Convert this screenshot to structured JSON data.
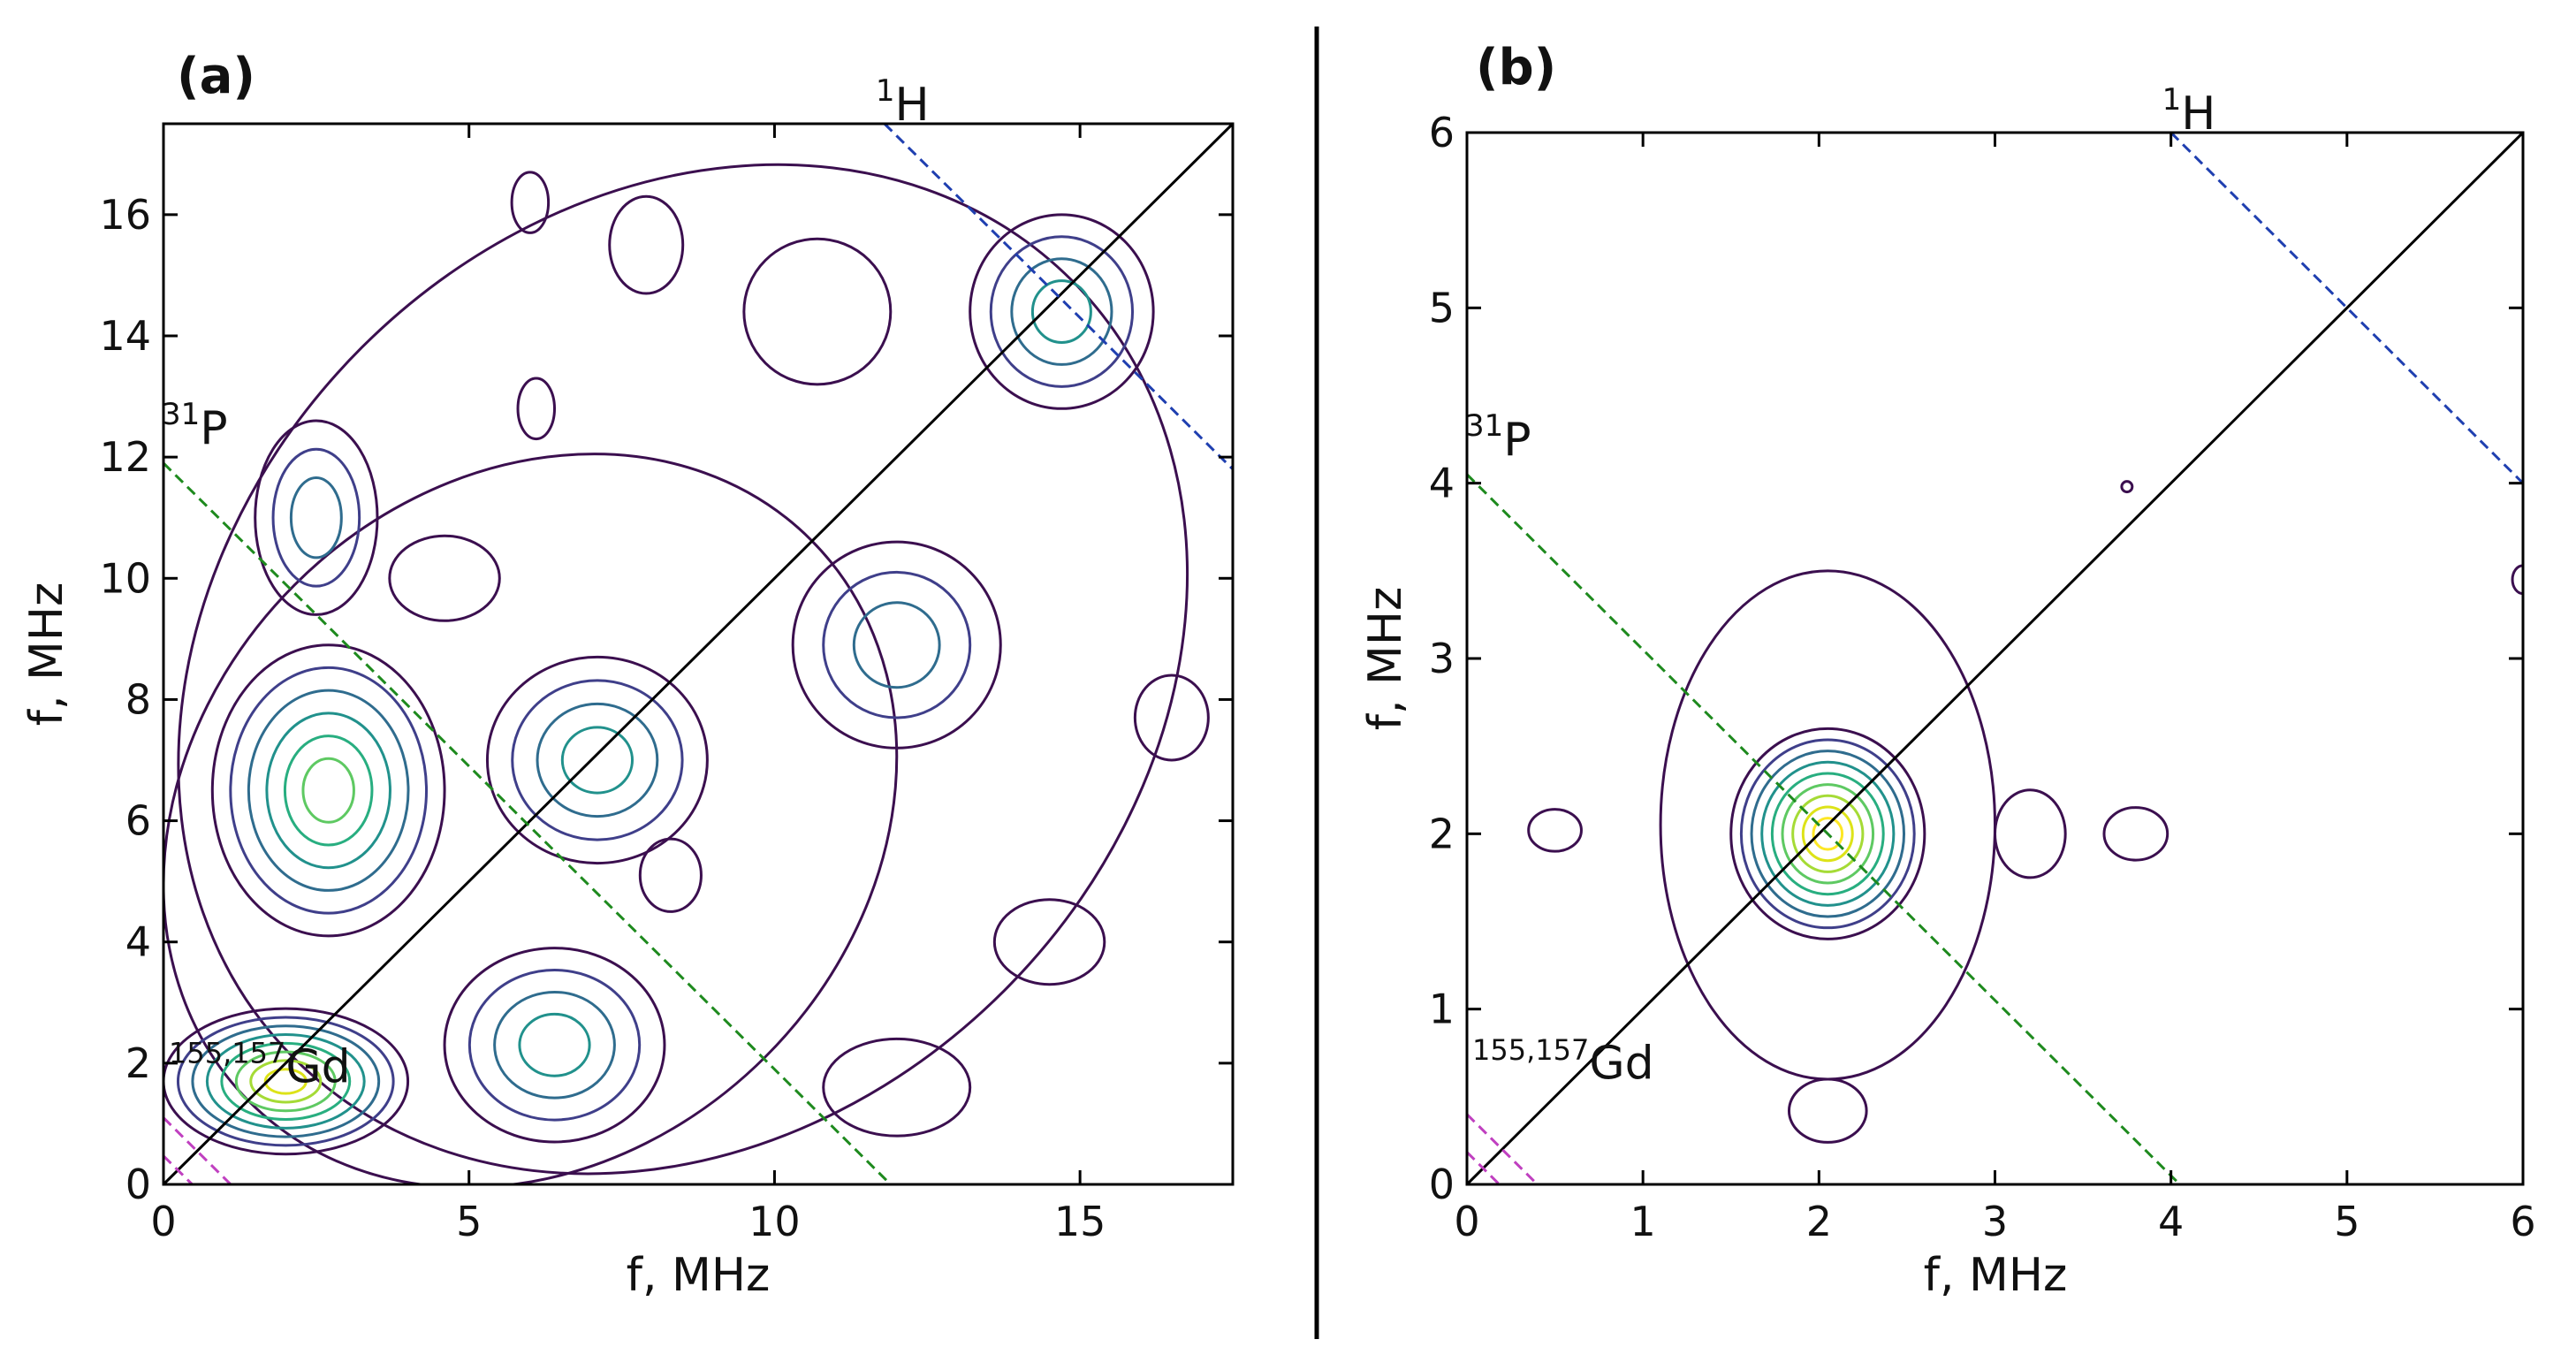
{
  "chart_data": [
    {
      "type": "contour",
      "panel_label": "(a)",
      "xlabel": "f, MHz",
      "ylabel": "f, MHz",
      "xlim": [
        0,
        17.5
      ],
      "ylim": [
        0,
        17.5
      ],
      "xticks": [
        0,
        5,
        10,
        15
      ],
      "yticks": [
        0,
        2,
        4,
        6,
        8,
        10,
        12,
        14,
        16
      ],
      "diagonal": {
        "from": [
          0,
          0
        ],
        "to": [
          17.5,
          17.5
        ],
        "color": "#000000"
      },
      "antidiagonals": [
        {
          "name": "1H",
          "label_base": "H",
          "label_sup": "1",
          "color": "#1f3fb0",
          "from": [
            11.8,
            17.5
          ],
          "to": [
            17.5,
            11.8
          ]
        },
        {
          "name": "31P",
          "label_base": "P",
          "label_sup": "31",
          "color": "#1e8a1e",
          "from": [
            0,
            11.9
          ],
          "to": [
            11.9,
            0
          ]
        },
        {
          "name": "155,157Gd",
          "label_base": "Gd",
          "label_sup": "155,157",
          "color": "#c040c0",
          "from": [
            0,
            1.1
          ],
          "to": [
            1.1,
            0
          ]
        }
      ],
      "peaks": [
        {
          "x": 2.0,
          "y": 1.7,
          "levels": 8,
          "shape": "ellipse",
          "rx": 2.0,
          "ry": 1.2
        },
        {
          "x": 2.7,
          "y": 6.5,
          "levels": 6,
          "shape": "ellipse",
          "rx": 1.9,
          "ry": 2.4
        },
        {
          "x": 7.1,
          "y": 7.0,
          "levels": 4,
          "shape": "ellipse",
          "rx": 1.8,
          "ry": 1.7
        },
        {
          "x": 6.4,
          "y": 2.3,
          "levels": 4,
          "shape": "ellipse",
          "rx": 1.8,
          "ry": 1.6
        },
        {
          "x": 12.0,
          "y": 8.9,
          "levels": 3,
          "shape": "ellipse",
          "rx": 1.7,
          "ry": 1.7
        },
        {
          "x": 14.7,
          "y": 14.4,
          "levels": 4,
          "shape": "ellipse",
          "rx": 1.5,
          "ry": 1.6
        },
        {
          "x": 10.7,
          "y": 14.4,
          "levels": 1,
          "shape": "ellipse",
          "rx": 1.2,
          "ry": 1.2
        },
        {
          "x": 12.0,
          "y": 1.6,
          "levels": 1,
          "shape": "ellipse",
          "rx": 1.2,
          "ry": 0.8
        },
        {
          "x": 4.6,
          "y": 10.0,
          "levels": 1,
          "shape": "ellipse",
          "rx": 0.9,
          "ry": 0.7
        },
        {
          "x": 2.5,
          "y": 11.0,
          "levels": 3,
          "shape": "ellipse",
          "rx": 1.0,
          "ry": 1.6
        },
        {
          "x": 16.5,
          "y": 7.7,
          "levels": 1,
          "shape": "ellipse",
          "rx": 0.6,
          "ry": 0.7
        },
        {
          "x": 14.5,
          "y": 4.0,
          "levels": 1,
          "shape": "ellipse",
          "rx": 0.9,
          "ry": 0.7
        },
        {
          "x": 7.9,
          "y": 15.5,
          "levels": 1,
          "shape": "ellipse",
          "rx": 0.6,
          "ry": 0.8
        },
        {
          "x": 6.0,
          "y": 16.2,
          "levels": 1,
          "shape": "ellipse",
          "rx": 0.3,
          "ry": 0.5
        },
        {
          "x": 6.1,
          "y": 12.8,
          "levels": 1,
          "shape": "ellipse",
          "rx": 0.3,
          "ry": 0.5
        },
        {
          "x": 8.3,
          "y": 5.1,
          "levels": 1,
          "shape": "ellipse",
          "rx": 0.5,
          "ry": 0.6
        }
      ],
      "envelopes": [
        {
          "x": 6.0,
          "y": 6.0,
          "rx": 6.5,
          "ry": 5.5,
          "rot": -45
        },
        {
          "x": 8.5,
          "y": 8.5,
          "rx": 9.0,
          "ry": 7.5,
          "rot": -45
        }
      ]
    },
    {
      "type": "contour",
      "panel_label": "(b)",
      "xlabel": "f, MHz",
      "ylabel": "f, MHz",
      "xlim": [
        0,
        6
      ],
      "ylim": [
        0,
        6
      ],
      "xticks": [
        0,
        1,
        2,
        3,
        4,
        5,
        6
      ],
      "yticks": [
        0,
        1,
        2,
        3,
        4,
        5,
        6
      ],
      "diagonal": {
        "from": [
          0,
          0
        ],
        "to": [
          6,
          6
        ],
        "color": "#000000"
      },
      "antidiagonals": [
        {
          "name": "1H",
          "label_base": "H",
          "label_sup": "1",
          "color": "#1f3fb0",
          "from": [
            4.0,
            6.0
          ],
          "to": [
            6.0,
            4.0
          ]
        },
        {
          "name": "31P",
          "label_base": "P",
          "label_sup": "31",
          "color": "#1e8a1e",
          "from": [
            0,
            4.05
          ],
          "to": [
            4.05,
            0
          ]
        },
        {
          "name": "155,157Gd",
          "label_base": "Gd",
          "label_sup": "155,157",
          "color": "#c040c0",
          "from": [
            0,
            0.4
          ],
          "to": [
            0.4,
            0
          ]
        }
      ],
      "peaks": [
        {
          "x": 2.05,
          "y": 2.0,
          "levels": 9,
          "shape": "ellipse",
          "rx": 0.55,
          "ry": 0.6
        },
        {
          "x": 0.5,
          "y": 2.02,
          "levels": 1,
          "shape": "ellipse",
          "rx": 0.15,
          "ry": 0.12
        },
        {
          "x": 3.2,
          "y": 2.0,
          "levels": 1,
          "shape": "ellipse",
          "rx": 0.2,
          "ry": 0.25
        },
        {
          "x": 3.8,
          "y": 2.0,
          "levels": 1,
          "shape": "ellipse",
          "rx": 0.18,
          "ry": 0.15
        },
        {
          "x": 2.05,
          "y": 0.42,
          "levels": 1,
          "shape": "ellipse",
          "rx": 0.22,
          "ry": 0.18
        },
        {
          "x": 3.75,
          "y": 3.98,
          "levels": 1,
          "shape": "ellipse",
          "rx": 0.03,
          "ry": 0.03
        },
        {
          "x": 6.0,
          "y": 3.45,
          "levels": 1,
          "shape": "ellipse",
          "rx": 0.06,
          "ry": 0.08
        }
      ],
      "envelopes": [
        {
          "x": 2.05,
          "y": 2.05,
          "rx": 0.95,
          "ry": 1.45,
          "rot": 0
        }
      ]
    }
  ]
}
